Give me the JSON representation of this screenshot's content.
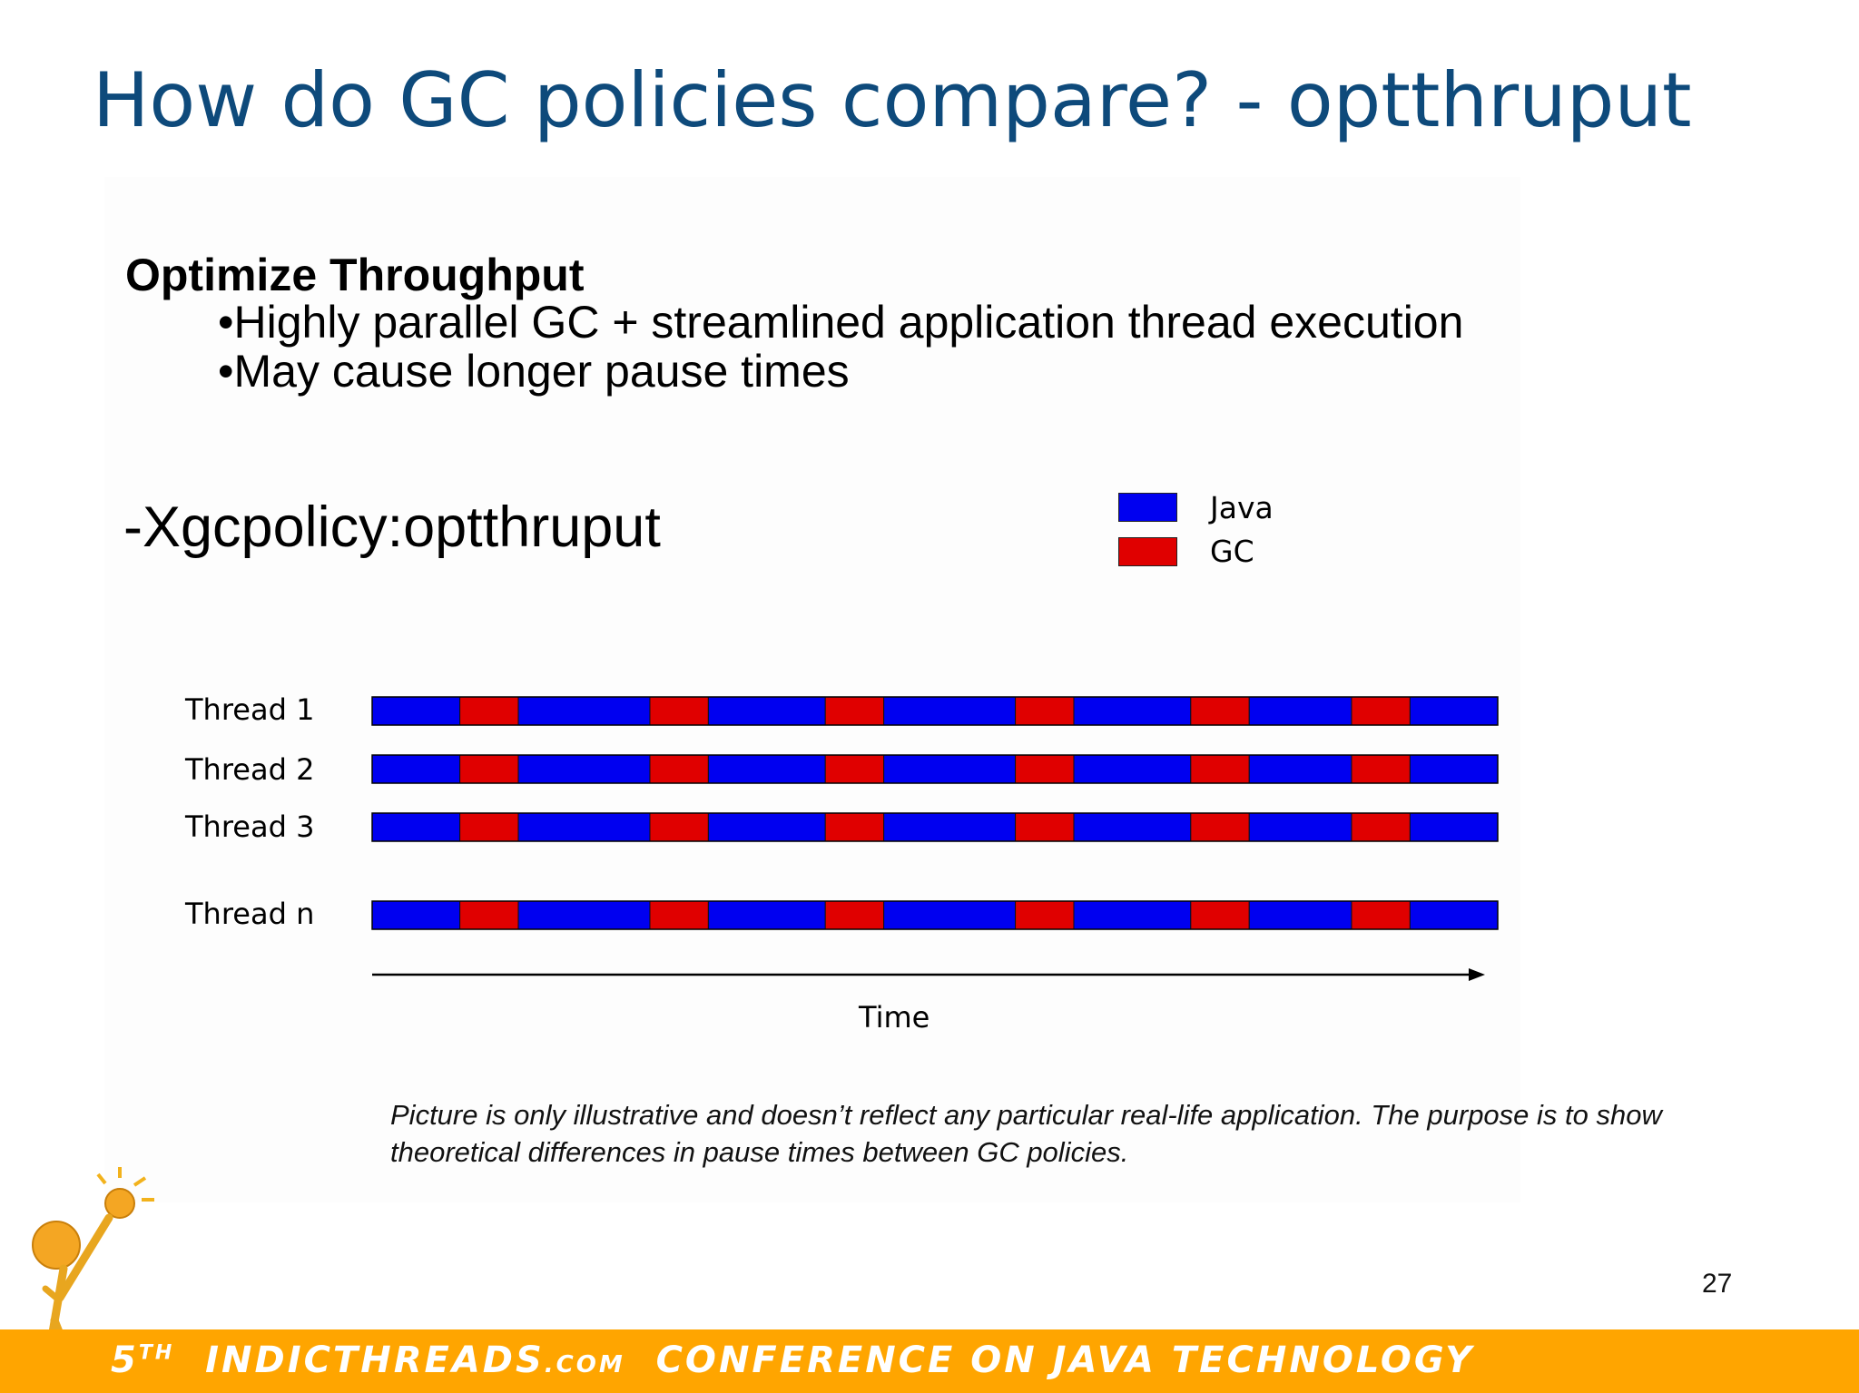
{
  "slide": {
    "title": "How do GC policies compare? - optthruput",
    "heading": "Optimize Throughput",
    "bullets": [
      "•Highly parallel GC + streamlined application thread execution",
      "•May cause longer pause times"
    ],
    "flag": "-Xgcpolicy:optthruput",
    "note": "Picture is only illustrative and doesn’t reflect any particular real-life application. The purpose is to show theoretical differences in pause times between GC policies.",
    "page_number": "27"
  },
  "legend": [
    {
      "label": "Java",
      "color": "#0000f0"
    },
    {
      "label": "GC",
      "color": "#e00000"
    }
  ],
  "timeline": {
    "threads": [
      "Thread 1",
      "Thread 2",
      "Thread 3",
      "Thread n"
    ],
    "axis_label": "Time",
    "segments": [
      {
        "kind": "Java",
        "length": 1.5
      },
      {
        "kind": "GC",
        "length": 1
      },
      {
        "kind": "Java",
        "length": 2.25
      },
      {
        "kind": "GC",
        "length": 1
      },
      {
        "kind": "Java",
        "length": 2
      },
      {
        "kind": "GC",
        "length": 1
      },
      {
        "kind": "Java",
        "length": 2.25
      },
      {
        "kind": "GC",
        "length": 1
      },
      {
        "kind": "Java",
        "length": 2
      },
      {
        "kind": "GC",
        "length": 1
      },
      {
        "kind": "Java",
        "length": 1.75
      },
      {
        "kind": "GC",
        "length": 1
      },
      {
        "kind": "Java",
        "length": 1.5
      }
    ]
  },
  "footer": {
    "ordinal": "5",
    "ordinal_suffix": "TH",
    "brand": "INDICTHREADS",
    "brand_suffix": ".COM",
    "tagline": "CONFERENCE ON JAVA TECHNOLOGY",
    "accent_color": "#ffa500"
  }
}
